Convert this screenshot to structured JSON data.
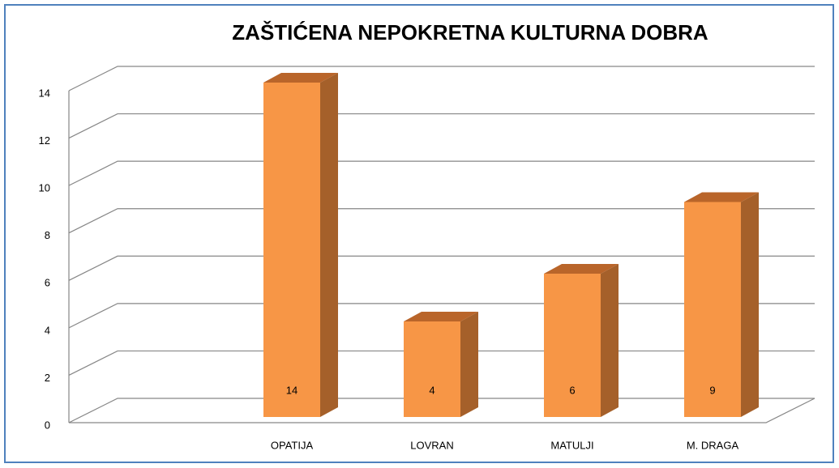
{
  "chart_data": {
    "type": "bar3d",
    "title": "ZAŠTIĆENA NEPOKRETNA KULTURNA DOBRA",
    "categories": [
      "OPATIJA",
      "LOVRAN",
      "MATULJI",
      "M. DRAGA"
    ],
    "values": [
      14,
      4,
      6,
      9
    ],
    "color": "#f79646",
    "ylim": [
      0,
      14
    ],
    "yticks": [
      0,
      2,
      4,
      6,
      8,
      10,
      12,
      14
    ],
    "grid": true
  }
}
